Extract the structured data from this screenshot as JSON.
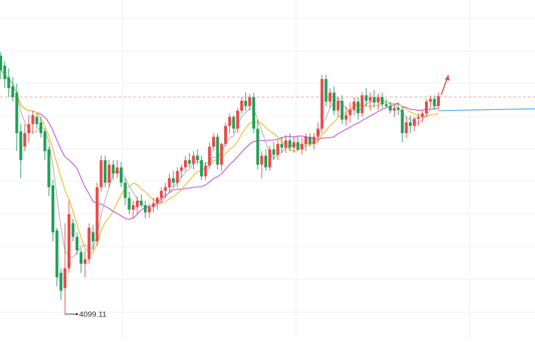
{
  "chart_data": {
    "type": "candlestick",
    "price_range": [
      4080,
      4440
    ],
    "grid": true,
    "colors": {
      "up": "#e84a4a",
      "down": "#22a05a",
      "ma_fast": "#b4b4b4",
      "ma_mid": "#f2b521",
      "ma_slow": "#c34fd6",
      "reference_line": "#3da6e6",
      "dashed_level": "#e8a0a0",
      "arrow": "#e84a4a",
      "low_marker": "#333333"
    },
    "low_label": "4099.11",
    "dashed_level_price": 4340,
    "reference_line_price": [
      4325,
      4327
    ],
    "candles": [
      [
        4386,
        4390,
        4360,
        4370
      ],
      [
        4375,
        4380,
        4350,
        4360
      ],
      [
        4362,
        4372,
        4340,
        4350
      ],
      [
        4352,
        4362,
        4335,
        4340
      ],
      [
        4345,
        4355,
        4280,
        4300
      ],
      [
        4302,
        4310,
        4250,
        4270
      ],
      [
        4285,
        4310,
        4280,
        4300
      ],
      [
        4300,
        4320,
        4290,
        4310
      ],
      [
        4310,
        4325,
        4300,
        4320
      ],
      [
        4318,
        4322,
        4305,
        4310
      ],
      [
        4312,
        4318,
        4295,
        4300
      ],
      [
        4302,
        4305,
        4270,
        4280
      ],
      [
        4282,
        4285,
        4230,
        4240
      ],
      [
        4242,
        4248,
        4180,
        4190
      ],
      [
        4192,
        4195,
        4130,
        4140
      ],
      [
        4145,
        4150,
        4115,
        4125
      ],
      [
        4128,
        4200,
        4099.11,
        4150
      ],
      [
        4150,
        4225,
        4145,
        4210
      ],
      [
        4200,
        4205,
        4180,
        4185
      ],
      [
        4185,
        4190,
        4165,
        4170
      ],
      [
        4168,
        4172,
        4145,
        4155
      ],
      [
        4155,
        4170,
        4140,
        4160
      ],
      [
        4160,
        4200,
        4155,
        4195
      ],
      [
        4190,
        4198,
        4170,
        4180
      ],
      [
        4180,
        4245,
        4175,
        4240
      ],
      [
        4240,
        4275,
        4235,
        4270
      ],
      [
        4270,
        4275,
        4240,
        4245
      ],
      [
        4245,
        4270,
        4240,
        4265
      ],
      [
        4265,
        4270,
        4248,
        4255
      ],
      [
        4255,
        4270,
        4250,
        4262
      ],
      [
        4262,
        4268,
        4240,
        4245
      ],
      [
        4245,
        4250,
        4220,
        4228
      ],
      [
        4228,
        4235,
        4210,
        4215
      ],
      [
        4215,
        4225,
        4205,
        4220
      ],
      [
        4218,
        4230,
        4210,
        4225
      ],
      [
        4225,
        4232,
        4218,
        4220
      ],
      [
        4220,
        4225,
        4205,
        4212
      ],
      [
        4212,
        4222,
        4206,
        4218
      ],
      [
        4218,
        4228,
        4212,
        4222
      ],
      [
        4222,
        4230,
        4215,
        4228
      ],
      [
        4228,
        4240,
        4222,
        4236
      ],
      [
        4236,
        4245,
        4228,
        4240
      ],
      [
        4240,
        4255,
        4235,
        4250
      ],
      [
        4250,
        4258,
        4240,
        4245
      ],
      [
        4245,
        4262,
        4240,
        4258
      ],
      [
        4258,
        4265,
        4250,
        4262
      ],
      [
        4262,
        4275,
        4258,
        4270
      ],
      [
        4270,
        4278,
        4262,
        4266
      ],
      [
        4266,
        4280,
        4260,
        4275
      ],
      [
        4275,
        4282,
        4265,
        4270
      ],
      [
        4270,
        4275,
        4248,
        4252
      ],
      [
        4252,
        4268,
        4248,
        4264
      ],
      [
        4264,
        4290,
        4260,
        4285
      ],
      [
        4285,
        4300,
        4280,
        4296
      ],
      [
        4296,
        4300,
        4260,
        4265
      ],
      [
        4265,
        4290,
        4258,
        4288
      ],
      [
        4288,
        4312,
        4285,
        4308
      ],
      [
        4308,
        4322,
        4300,
        4318
      ],
      [
        4318,
        4320,
        4300,
        4305
      ],
      [
        4305,
        4328,
        4300,
        4325
      ],
      [
        4325,
        4340,
        4322,
        4336
      ],
      [
        4336,
        4345,
        4325,
        4330
      ],
      [
        4330,
        4344,
        4325,
        4340
      ],
      [
        4340,
        4345,
        4300,
        4305
      ],
      [
        4305,
        4315,
        4260,
        4265
      ],
      [
        4265,
        4280,
        4250,
        4275
      ],
      [
        4275,
        4282,
        4258,
        4262
      ],
      [
        4262,
        4286,
        4258,
        4282
      ],
      [
        4282,
        4290,
        4270,
        4276
      ],
      [
        4276,
        4292,
        4270,
        4288
      ],
      [
        4288,
        4296,
        4278,
        4284
      ],
      [
        4284,
        4298,
        4278,
        4292
      ],
      [
        4292,
        4300,
        4280,
        4284
      ],
      [
        4284,
        4296,
        4278,
        4290
      ],
      [
        4290,
        4296,
        4280,
        4282
      ],
      [
        4282,
        4295,
        4276,
        4288
      ],
      [
        4288,
        4300,
        4280,
        4296
      ],
      [
        4296,
        4300,
        4285,
        4288
      ],
      [
        4288,
        4300,
        4282,
        4296
      ],
      [
        4296,
        4312,
        4290,
        4305
      ],
      [
        4305,
        4365,
        4300,
        4360
      ],
      [
        4360,
        4365,
        4330,
        4335
      ],
      [
        4335,
        4350,
        4328,
        4345
      ],
      [
        4345,
        4352,
        4320,
        4325
      ],
      [
        4325,
        4340,
        4318,
        4336
      ],
      [
        4336,
        4342,
        4310,
        4315
      ],
      [
        4315,
        4330,
        4308,
        4320
      ],
      [
        4320,
        4334,
        4312,
        4326
      ],
      [
        4326,
        4340,
        4320,
        4335
      ],
      [
        4335,
        4340,
        4315,
        4322
      ],
      [
        4322,
        4345,
        4318,
        4342
      ],
      [
        4342,
        4350,
        4330,
        4336
      ],
      [
        4336,
        4345,
        4325,
        4340
      ],
      [
        4340,
        4348,
        4328,
        4334
      ],
      [
        4334,
        4344,
        4326,
        4340
      ],
      [
        4340,
        4345,
        4328,
        4332
      ],
      [
        4332,
        4338,
        4328,
        4330
      ],
      [
        4330,
        4335,
        4322,
        4325
      ],
      [
        4325,
        4332,
        4318,
        4328
      ],
      [
        4328,
        4334,
        4320,
        4326
      ],
      [
        4326,
        4330,
        4290,
        4300
      ],
      [
        4300,
        4318,
        4295,
        4312
      ],
      [
        4312,
        4320,
        4300,
        4308
      ],
      [
        4308,
        4318,
        4302,
        4316
      ],
      [
        4316,
        4322,
        4308,
        4318
      ],
      [
        4318,
        4326,
        4312,
        4322
      ],
      [
        4322,
        4338,
        4318,
        4335
      ],
      [
        4335,
        4342,
        4328,
        4338
      ],
      [
        4338,
        4342,
        4326,
        4330
      ],
      [
        4330,
        4345,
        4326,
        4341
      ]
    ]
  }
}
